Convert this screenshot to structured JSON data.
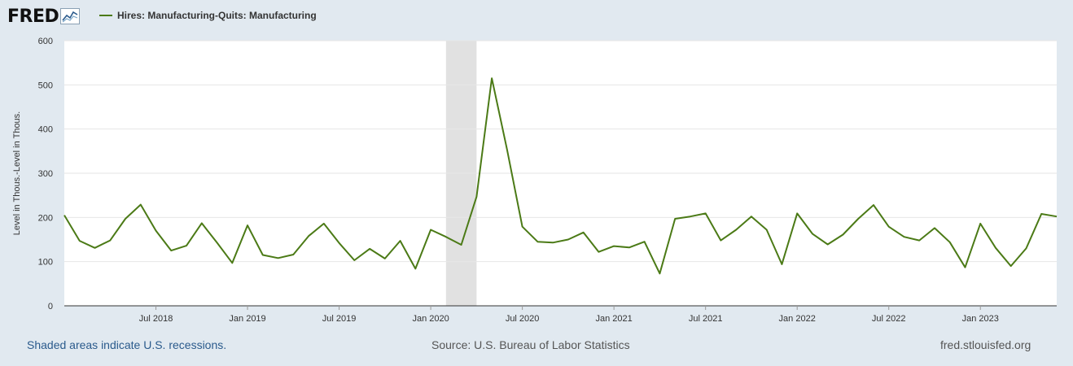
{
  "logo": {
    "text": "FRED",
    "icon": "line-chart-icon"
  },
  "chart_data": {
    "type": "line",
    "title": "",
    "xlabel": "",
    "ylabel": "Level in Thous.-Level in Thous.",
    "ylim": [
      0,
      600
    ],
    "yticks": [
      0,
      100,
      200,
      300,
      400,
      500,
      600
    ],
    "xlim": [
      "2018-01",
      "2023-05"
    ],
    "xticks": [
      {
        "date": "2018-07",
        "label": "Jul 2018"
      },
      {
        "date": "2019-01",
        "label": "Jan 2019"
      },
      {
        "date": "2019-07",
        "label": "Jul 2019"
      },
      {
        "date": "2020-01",
        "label": "Jan 2020"
      },
      {
        "date": "2020-07",
        "label": "Jul 2020"
      },
      {
        "date": "2021-01",
        "label": "Jan 2021"
      },
      {
        "date": "2021-07",
        "label": "Jul 2021"
      },
      {
        "date": "2022-01",
        "label": "Jan 2022"
      },
      {
        "date": "2022-07",
        "label": "Jul 2022"
      },
      {
        "date": "2023-01",
        "label": "Jan 2023"
      }
    ],
    "grid": true,
    "recession": {
      "start": "2020-02",
      "end": "2020-04"
    },
    "series": [
      {
        "name": "Hires: Manufacturing-Quits: Manufacturing",
        "color": "#4b7a16",
        "x": [
          "2018-01",
          "2018-02",
          "2018-03",
          "2018-04",
          "2018-05",
          "2018-06",
          "2018-07",
          "2018-08",
          "2018-09",
          "2018-10",
          "2018-11",
          "2018-12",
          "2019-01",
          "2019-02",
          "2019-03",
          "2019-04",
          "2019-05",
          "2019-06",
          "2019-07",
          "2019-08",
          "2019-09",
          "2019-10",
          "2019-11",
          "2019-12",
          "2020-01",
          "2020-02",
          "2020-03",
          "2020-04",
          "2020-05",
          "2020-06",
          "2020-07",
          "2020-08",
          "2020-09",
          "2020-10",
          "2020-11",
          "2020-12",
          "2021-01",
          "2021-02",
          "2021-03",
          "2021-04",
          "2021-05",
          "2021-06",
          "2021-07",
          "2021-08",
          "2021-09",
          "2021-10",
          "2021-11",
          "2021-12",
          "2022-01",
          "2022-02",
          "2022-03",
          "2022-04",
          "2022-05",
          "2022-06",
          "2022-07",
          "2022-08",
          "2022-09",
          "2022-10",
          "2022-11",
          "2022-12",
          "2023-01",
          "2023-02",
          "2023-03",
          "2023-04",
          "2023-05",
          "2023-06"
        ],
        "values": [
          205,
          147,
          131,
          148,
          197,
          229,
          170,
          125,
          136,
          187,
          143,
          97,
          182,
          115,
          108,
          116,
          158,
          186,
          142,
          103,
          129,
          107,
          147,
          84,
          172,
          156,
          138,
          247,
          515,
          353,
          179,
          145,
          143,
          150,
          166,
          122,
          135,
          132,
          145,
          73,
          197,
          202,
          209,
          148,
          172,
          202,
          172,
          94,
          209,
          163,
          139,
          161,
          197,
          228,
          179,
          156,
          148,
          176,
          144,
          87,
          186,
          131,
          90,
          130,
          208,
          202
        ]
      }
    ]
  },
  "footer": {
    "recession_note": "Shaded areas indicate U.S. recessions.",
    "source": "Source: U.S. Bureau of Labor Statistics",
    "site": "fred.stlouisfed.org"
  }
}
